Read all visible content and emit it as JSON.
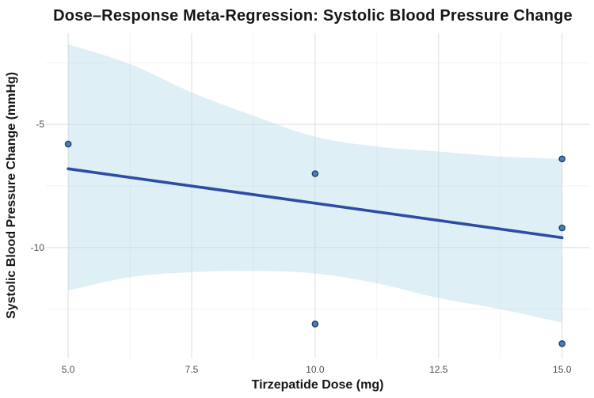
{
  "chart_data": {
    "type": "scatter",
    "title": "Dose–Response Meta-Regression: Systolic Blood Pressure Change",
    "xlabel": "Tirzepatide Dose (mg)",
    "ylabel": "Systolic Blood Pressure Change (mmHg)",
    "xlim": [
      4.55,
      15.55
    ],
    "ylim": [
      -14.5,
      -1.3
    ],
    "x_ticks": {
      "values": [
        5,
        7.5,
        10,
        12.5,
        15
      ],
      "labels": [
        "5.0",
        "7.5",
        "10.0",
        "12.5",
        "15.0"
      ]
    },
    "y_ticks": {
      "values": [
        -5,
        -10
      ],
      "labels": [
        "-5",
        "-10"
      ]
    },
    "x_minor": [
      6.25,
      8.75,
      11.25,
      13.75
    ],
    "y_minor": [
      -2.5,
      -7.5,
      -12.5
    ],
    "grid": true,
    "legend": false,
    "points": [
      {
        "x": 5,
        "y": -5.8
      },
      {
        "x": 10,
        "y": -7.0
      },
      {
        "x": 10,
        "y": -13.1
      },
      {
        "x": 15,
        "y": -6.4
      },
      {
        "x": 15,
        "y": -9.2
      },
      {
        "x": 15,
        "y": -13.9
      }
    ],
    "regression_line": {
      "x": [
        5,
        15
      ],
      "y": [
        -6.8,
        -9.6
      ]
    },
    "ci_band": {
      "x": [
        5,
        6.25,
        7.5,
        8.75,
        10,
        11.25,
        12.5,
        13.75,
        15
      ],
      "upper": [
        -1.75,
        -2.55,
        -3.7,
        -4.65,
        -5.5,
        -5.9,
        -6.1,
        -6.3,
        -6.4
      ],
      "lower": [
        -11.75,
        -11.2,
        -11.0,
        -10.95,
        -11.05,
        -11.45,
        -12.05,
        -12.5,
        -13.05
      ]
    }
  },
  "colors": {
    "background": "#ffffff",
    "regression_line": "#2d4ca3",
    "point_fill": "#4d7fb5",
    "point_stroke": "#1f3f70",
    "band_fill": "#b8dcea",
    "band_opacity": 0.45,
    "grid_major": "#e3e3e3",
    "grid_minor": "#f1f1f1",
    "title_text": "#161616",
    "tick_text": "#4d4d4d"
  }
}
